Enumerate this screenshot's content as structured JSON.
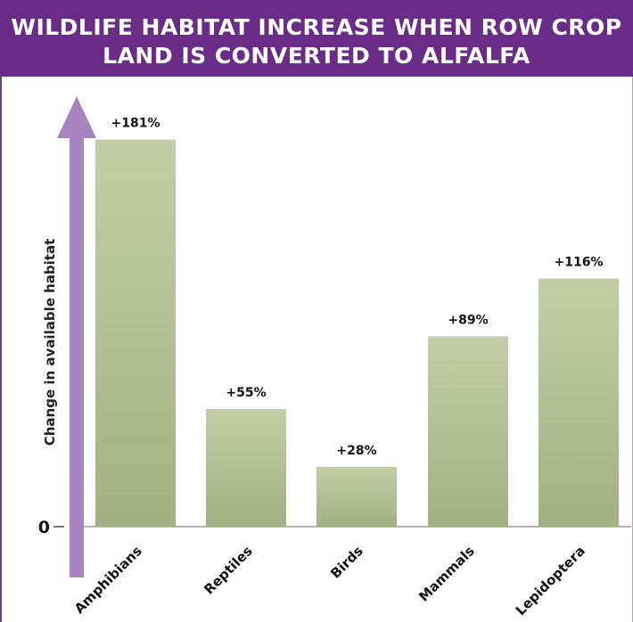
{
  "header": {
    "title": "WILDLIFE HABITAT INCREASE WHEN ROW CROP LAND IS CONVERTED TO ALFALFA"
  },
  "colors": {
    "header_bg": "#6a2c86",
    "arrow": "#a783bf",
    "bar_top": "#c3cda7",
    "bar_bottom": "#a2b183"
  },
  "chart_data": {
    "type": "bar",
    "title": "WILDLIFE HABITAT INCREASE WHEN ROW CROP LAND IS CONVERTED TO ALFALFA",
    "ylabel": "Change in available habitat",
    "xlabel": "",
    "categories": [
      "Amphibians",
      "Reptiles",
      "Birds",
      "Mammals",
      "Lepidoptera"
    ],
    "values": [
      181,
      55,
      28,
      89,
      116
    ],
    "value_labels": [
      "+181%",
      "+55%",
      "+28%",
      "+89%",
      "+116%"
    ],
    "unit": "%",
    "y_tick_labels": [
      "0"
    ],
    "ylim": [
      0,
      200
    ],
    "grid": false
  }
}
